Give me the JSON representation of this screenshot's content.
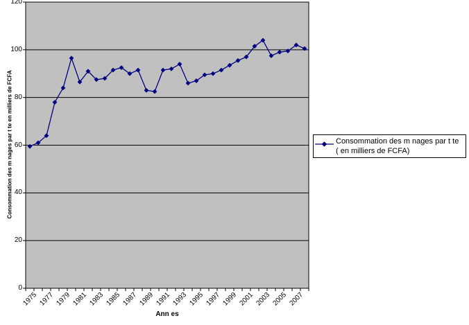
{
  "chart_data": {
    "type": "line",
    "title": "",
    "x": [
      1975,
      1976,
      1977,
      1978,
      1979,
      1980,
      1981,
      1982,
      1983,
      1984,
      1985,
      1986,
      1987,
      1988,
      1989,
      1990,
      1991,
      1992,
      1993,
      1994,
      1995,
      1996,
      1997,
      1998,
      1999,
      2000,
      2001,
      2002,
      2003,
      2004,
      2005,
      2006,
      2007,
      2008
    ],
    "series": [
      {
        "name": "Consommation des m nages par t te ( en milliers de FCFA)",
        "values": [
          59.5,
          61,
          64,
          78,
          84,
          96.5,
          86.5,
          91,
          87.5,
          88,
          91.5,
          92.5,
          90,
          91.5,
          83,
          82.5,
          91.5,
          92,
          94,
          86,
          87,
          89.5,
          90,
          91.5,
          93.5,
          95.5,
          97,
          101.5,
          104,
          97.5,
          99,
          99.5,
          102,
          100.5
        ]
      }
    ],
    "xlabel": "Ann es",
    "ylabel": "Consommation des m nages par t te en milliers de FCFA",
    "ylim": [
      0,
      120
    ],
    "yticks": [
      0,
      20,
      40,
      60,
      80,
      100,
      120
    ],
    "xtick_labels": [
      "1975",
      "1977",
      "1979",
      "1981",
      "1983",
      "1985",
      "1987",
      "1989",
      "1991",
      "1993",
      "1995",
      "1997",
      "1999",
      "2001",
      "2003",
      "2005",
      "2007"
    ],
    "grid": true,
    "legend_position": "right",
    "marker": "diamond",
    "colors": {
      "line": "#000080",
      "plot_bg": "#c0c0c0",
      "gridline": "#000000",
      "axis": "#000000",
      "background": "#ffffff",
      "legend_border": "#000000"
    }
  }
}
